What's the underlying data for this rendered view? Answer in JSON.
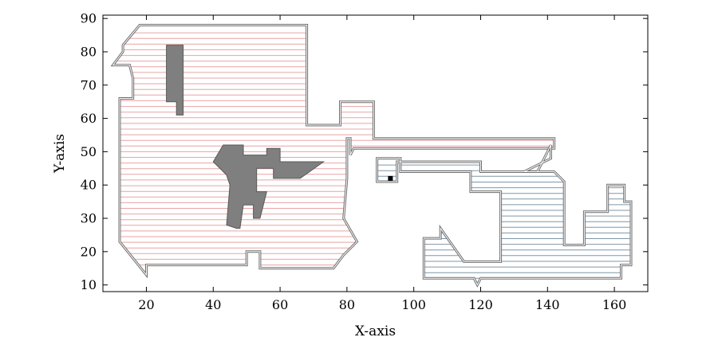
{
  "chart_data": {
    "type": "line",
    "title": "",
    "xlabel": "X-axis",
    "ylabel": "Y-axis",
    "xlim": [
      7,
      170
    ],
    "ylim": [
      8,
      91
    ],
    "xticks": [
      20,
      40,
      60,
      80,
      100,
      120,
      140,
      160
    ],
    "yticks": [
      10,
      20,
      30,
      40,
      50,
      60,
      70,
      80,
      90
    ],
    "grid": false,
    "legend": "none",
    "colors": {
      "region_red": "#e8a4a4",
      "region_blue": "#7f96a8",
      "boundary": "#6e6e6e",
      "obstacle": "#7f7f7f",
      "marker": "#000000"
    },
    "regions": [
      {
        "color": "region_red",
        "boundary": [
          [
            12,
            23
          ],
          [
            12,
            66
          ],
          [
            16,
            66
          ],
          [
            16,
            72
          ],
          [
            15,
            76
          ],
          [
            10,
            76
          ],
          [
            13,
            80
          ],
          [
            13,
            82
          ],
          [
            18,
            88
          ],
          [
            68,
            88
          ],
          [
            68,
            58
          ],
          [
            78,
            58
          ],
          [
            78,
            65
          ],
          [
            88,
            65
          ],
          [
            88,
            54
          ],
          [
            142,
            54
          ],
          [
            142,
            51
          ],
          [
            82,
            51
          ],
          [
            81,
            49
          ],
          [
            81,
            54
          ],
          [
            80,
            54
          ],
          [
            80,
            42
          ],
          [
            79,
            30
          ],
          [
            83,
            23
          ],
          [
            79,
            19
          ],
          [
            76,
            15
          ],
          [
            54,
            15
          ],
          [
            54,
            20
          ],
          [
            50,
            20
          ],
          [
            50,
            16
          ],
          [
            20,
            16
          ],
          [
            20,
            13
          ],
          [
            12,
            23
          ]
        ],
        "hatch_y": [
          16,
          87
        ],
        "hatch_step": 1.7
      },
      {
        "color": "region_blue",
        "boundary": [
          [
            89,
            48
          ],
          [
            89,
            41
          ],
          [
            95,
            41
          ],
          [
            95,
            47
          ],
          [
            120,
            47
          ],
          [
            120,
            44
          ],
          [
            130,
            44
          ],
          [
            137,
            44
          ],
          [
            141,
            52
          ],
          [
            141,
            48
          ],
          [
            133,
            44
          ],
          [
            142,
            44
          ],
          [
            145,
            41
          ],
          [
            145,
            22
          ],
          [
            151,
            22
          ],
          [
            151,
            32
          ],
          [
            155,
            32
          ],
          [
            158,
            32
          ],
          [
            158,
            40
          ],
          [
            163,
            40
          ],
          [
            163,
            35
          ],
          [
            165,
            35
          ],
          [
            165,
            16
          ],
          [
            162,
            16
          ],
          [
            162,
            12
          ],
          [
            120,
            12
          ],
          [
            119,
            10
          ],
          [
            118,
            12
          ],
          [
            103,
            12
          ],
          [
            103,
            24
          ],
          [
            108,
            24
          ],
          [
            108,
            27
          ],
          [
            115,
            17
          ],
          [
            126,
            17
          ],
          [
            126,
            38
          ],
          [
            117,
            38
          ],
          [
            117,
            44
          ],
          [
            96,
            44
          ],
          [
            96,
            48
          ],
          [
            89,
            48
          ]
        ],
        "hatch_y": [
          12,
          47
        ],
        "hatch_step": 1.7
      }
    ],
    "obstacles": [
      [
        [
          26,
          82
        ],
        [
          31,
          82
        ],
        [
          31,
          61
        ],
        [
          29,
          61
        ],
        [
          29,
          65
        ],
        [
          26,
          65
        ],
        [
          26,
          82
        ]
      ],
      [
        [
          40,
          47
        ],
        [
          43,
          52
        ],
        [
          49,
          52
        ],
        [
          49,
          49
        ],
        [
          56,
          49
        ],
        [
          56,
          51
        ],
        [
          60,
          51
        ],
        [
          60,
          47
        ],
        [
          73,
          47
        ],
        [
          66,
          42
        ],
        [
          58,
          42
        ],
        [
          58,
          45
        ],
        [
          53,
          45
        ],
        [
          53,
          38
        ],
        [
          56,
          38
        ],
        [
          54,
          30
        ],
        [
          52,
          30
        ],
        [
          52,
          34
        ],
        [
          49,
          34
        ],
        [
          48,
          27
        ],
        [
          47,
          27
        ],
        [
          44,
          28
        ],
        [
          45,
          40
        ],
        [
          44,
          43
        ],
        [
          40,
          47
        ]
      ]
    ],
    "start_point": [
      93,
      42
    ]
  }
}
